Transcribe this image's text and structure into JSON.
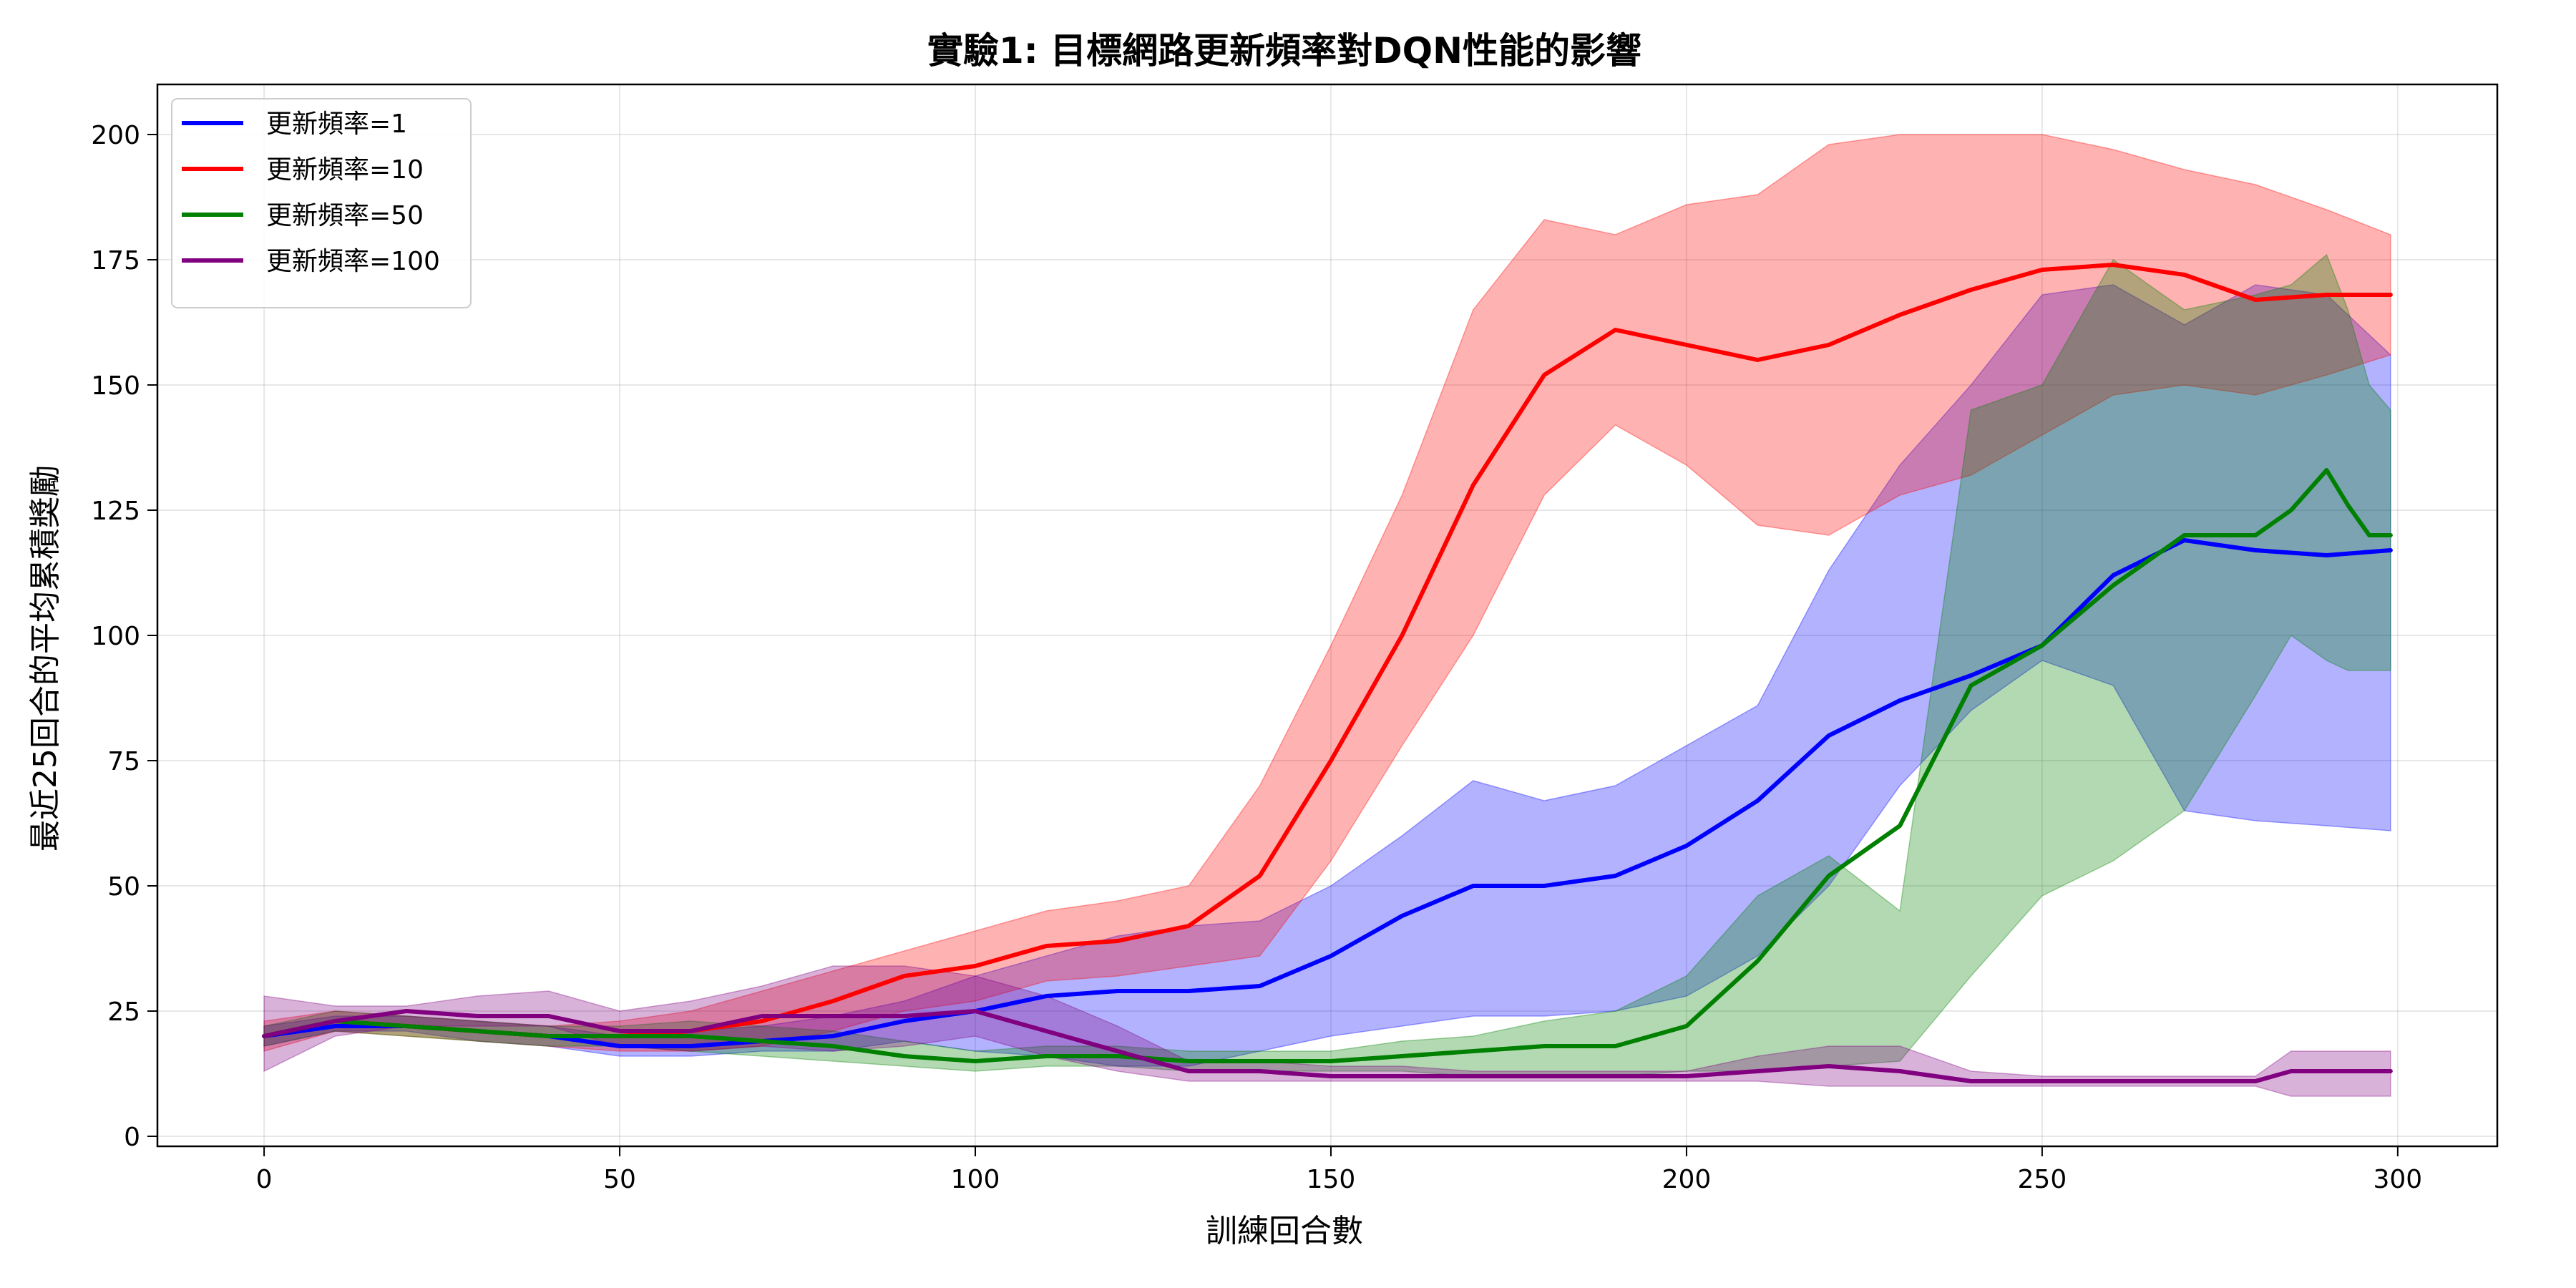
{
  "chart_data": {
    "type": "line",
    "title": "實驗1: 目標網路更新頻率對DQN性能的影響",
    "xlabel": "訓練回合數",
    "ylabel": "最近25回合的平均累積獎勵",
    "xlim": [
      -15,
      314
    ],
    "ylim": [
      -2,
      210
    ],
    "xticks": [
      0,
      50,
      100,
      150,
      200,
      250,
      300
    ],
    "yticks": [
      0,
      25,
      50,
      75,
      100,
      125,
      150,
      175,
      200
    ],
    "grid": true,
    "legend_position": "top-left",
    "series": [
      {
        "name": "更新頻率=1",
        "color": "#0000ff",
        "band_color": "#0000ff",
        "band_opacity": 0.3,
        "x": [
          0,
          10,
          20,
          30,
          40,
          50,
          60,
          70,
          80,
          90,
          100,
          110,
          120,
          130,
          140,
          150,
          160,
          170,
          180,
          190,
          200,
          210,
          220,
          230,
          240,
          250,
          260,
          270,
          280,
          290,
          299
        ],
        "mean": [
          20,
          22,
          22,
          21,
          20,
          18,
          18,
          19,
          20,
          23,
          25,
          28,
          29,
          29,
          30,
          36,
          44,
          50,
          50,
          52,
          58,
          67,
          80,
          87,
          92,
          98,
          112,
          119,
          117,
          116,
          117
        ],
        "lower": [
          18,
          21,
          21,
          19,
          18,
          16,
          16,
          17,
          17,
          19,
          17,
          16,
          14,
          14,
          17,
          20,
          22,
          24,
          24,
          25,
          28,
          36,
          50,
          70,
          85,
          95,
          90,
          65,
          63,
          62,
          61
        ],
        "upper": [
          22,
          24,
          24,
          23,
          22,
          20,
          21,
          22,
          24,
          27,
          32,
          36,
          40,
          42,
          43,
          50,
          60,
          71,
          67,
          70,
          78,
          86,
          113,
          134,
          150,
          168,
          170,
          162,
          170,
          168,
          156
        ]
      },
      {
        "name": "更新頻率=10",
        "color": "#ff0000",
        "band_color": "#ff0000",
        "band_opacity": 0.3,
        "x": [
          0,
          10,
          20,
          30,
          40,
          50,
          60,
          70,
          80,
          90,
          100,
          110,
          120,
          130,
          140,
          150,
          160,
          170,
          180,
          190,
          200,
          210,
          220,
          230,
          240,
          250,
          260,
          270,
          280,
          290,
          299
        ],
        "mean": [
          20,
          23,
          22,
          21,
          20,
          20,
          21,
          23,
          27,
          32,
          34,
          38,
          39,
          42,
          52,
          75,
          100,
          130,
          152,
          161,
          158,
          155,
          158,
          164,
          169,
          173,
          174,
          172,
          167,
          168,
          168
        ],
        "lower": [
          17,
          21,
          20,
          19,
          18,
          17,
          17,
          18,
          21,
          25,
          27,
          31,
          32,
          34,
          36,
          55,
          78,
          100,
          128,
          142,
          134,
          122,
          120,
          128,
          132,
          140,
          148,
          150,
          148,
          152,
          156
        ],
        "upper": [
          23,
          25,
          24,
          23,
          22,
          23,
          25,
          29,
          33,
          37,
          41,
          45,
          47,
          50,
          70,
          98,
          128,
          165,
          183,
          180,
          186,
          188,
          198,
          200,
          200,
          200,
          197,
          193,
          190,
          185,
          180
        ]
      },
      {
        "name": "更新頻率=50",
        "color": "#008000",
        "band_color": "#008000",
        "band_opacity": 0.3,
        "x": [
          0,
          10,
          20,
          30,
          40,
          50,
          60,
          70,
          80,
          90,
          100,
          110,
          120,
          130,
          140,
          150,
          160,
          170,
          180,
          190,
          200,
          210,
          220,
          230,
          240,
          250,
          260,
          270,
          280,
          285,
          290,
          293,
          296,
          299
        ],
        "mean": [
          20,
          23,
          22,
          21,
          20,
          20,
          20,
          19,
          18,
          16,
          15,
          16,
          16,
          15,
          15,
          15,
          16,
          17,
          18,
          18,
          22,
          35,
          52,
          62,
          90,
          98,
          110,
          120,
          120,
          125,
          133,
          126,
          120,
          120
        ],
        "lower": [
          18,
          21,
          20,
          19,
          18,
          18,
          17,
          16,
          15,
          14,
          13,
          14,
          14,
          13,
          13,
          13,
          13,
          12,
          12,
          12,
          13,
          13,
          14,
          15,
          32,
          48,
          55,
          65,
          88,
          100,
          95,
          93,
          93,
          93
        ],
        "upper": [
          22,
          25,
          24,
          23,
          22,
          22,
          23,
          22,
          21,
          19,
          17,
          18,
          18,
          17,
          17,
          17,
          19,
          20,
          23,
          25,
          32,
          48,
          56,
          45,
          145,
          150,
          175,
          165,
          168,
          170,
          176,
          165,
          150,
          145
        ]
      },
      {
        "name": "更新頻率=100",
        "color": "#800080",
        "band_color": "#800080",
        "band_opacity": 0.3,
        "x": [
          0,
          10,
          20,
          30,
          40,
          50,
          60,
          70,
          80,
          90,
          100,
          110,
          120,
          130,
          140,
          150,
          160,
          170,
          180,
          190,
          200,
          210,
          220,
          230,
          240,
          250,
          260,
          270,
          280,
          285,
          290,
          299
        ],
        "mean": [
          20,
          23,
          25,
          24,
          24,
          21,
          21,
          24,
          24,
          24,
          25,
          21,
          17,
          13,
          13,
          12,
          12,
          12,
          12,
          12,
          12,
          13,
          14,
          13,
          11,
          11,
          11,
          11,
          11,
          13,
          13,
          13
        ],
        "lower": [
          13,
          20,
          22,
          22,
          22,
          18,
          17,
          18,
          17,
          18,
          20,
          16,
          13,
          11,
          11,
          11,
          11,
          11,
          11,
          11,
          11,
          11,
          10,
          10,
          10,
          10,
          10,
          10,
          10,
          8,
          8,
          8
        ],
        "upper": [
          28,
          26,
          26,
          28,
          29,
          25,
          27,
          30,
          34,
          34,
          32,
          28,
          22,
          15,
          15,
          14,
          14,
          13,
          13,
          13,
          13,
          16,
          18,
          18,
          13,
          12,
          12,
          12,
          12,
          17,
          17,
          17
        ]
      }
    ]
  }
}
